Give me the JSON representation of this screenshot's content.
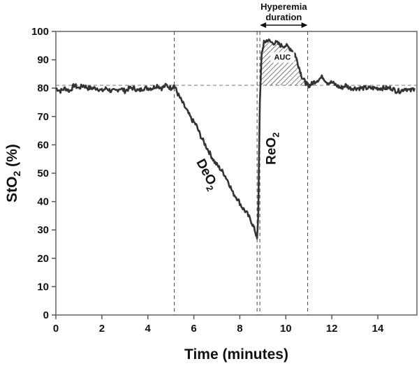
{
  "chart_data": {
    "type": "line",
    "title": "",
    "xlabel": "Time (minutes)",
    "ylabel_main": "StO",
    "ylabel_sub": "2",
    "ylabel_tail": " (%)",
    "xlim": [
      0,
      15.7
    ],
    "ylim": [
      0,
      100
    ],
    "x_ticks": [
      0,
      2,
      4,
      6,
      8,
      10,
      12,
      14
    ],
    "y_ticks": [
      0,
      10,
      20,
      30,
      40,
      50,
      60,
      70,
      80,
      90,
      100
    ],
    "grid": false,
    "legend": "none",
    "baseline_y": 81,
    "vertical_markers": [
      5.15,
      8.75,
      8.87,
      10.95
    ],
    "hyperemia_arrow": {
      "x_start": 8.87,
      "x_end": 10.95
    },
    "series": [
      {
        "x": [
          0,
          0.2,
          0.4,
          0.6,
          0.8,
          1.0,
          1.2,
          1.4,
          1.6,
          1.8,
          2.0,
          2.2,
          2.4,
          2.6,
          2.8,
          3.0,
          3.2,
          3.4,
          3.6,
          3.8,
          4.0,
          4.2,
          4.4,
          4.6,
          4.8,
          5.0,
          5.15,
          5.3,
          5.5,
          5.7,
          5.9,
          6.1,
          6.3,
          6.5,
          6.7,
          6.9,
          7.1,
          7.3,
          7.5,
          7.7,
          7.9,
          8.1,
          8.3,
          8.5,
          8.65,
          8.75,
          8.8,
          8.87,
          8.95,
          9.05,
          9.2,
          9.4,
          9.6,
          9.8,
          10.0,
          10.2,
          10.4,
          10.55,
          10.7,
          10.85,
          10.95,
          11.05,
          11.2,
          11.4,
          11.6,
          11.8,
          12.0,
          12.2,
          12.4,
          12.6,
          12.8,
          13.0,
          13.2,
          13.4,
          13.6,
          13.8,
          14.0,
          14.2,
          14.4,
          14.6,
          14.8,
          15.0,
          15.2,
          15.4,
          15.6
        ],
        "y": [
          80,
          79,
          80,
          79,
          81,
          80,
          81,
          80,
          80,
          80,
          79,
          80,
          79,
          79,
          80,
          79,
          80,
          80,
          79,
          80,
          80,
          80,
          81,
          80,
          81,
          80,
          81,
          78,
          75,
          72,
          69,
          67,
          63,
          60,
          57,
          54,
          52,
          50,
          47,
          43,
          41,
          38,
          36,
          33,
          30,
          27,
          35,
          75,
          92,
          96,
          97,
          96,
          96,
          95,
          95,
          94,
          92,
          88,
          84,
          82,
          81,
          81,
          82,
          83,
          84,
          82,
          82,
          81,
          80,
          81,
          80,
          80,
          80,
          80,
          80,
          80,
          80,
          80,
          80,
          80,
          79,
          79,
          80,
          79,
          80
        ]
      }
    ],
    "annotations": {
      "deo2_main": "DeO",
      "deo2_sub": "2",
      "reo2_main": "ReO",
      "reo2_sub": "2",
      "auc": "AUC",
      "hyperemia_line1": "Hyperemia",
      "hyperemia_line2": "duration"
    }
  }
}
